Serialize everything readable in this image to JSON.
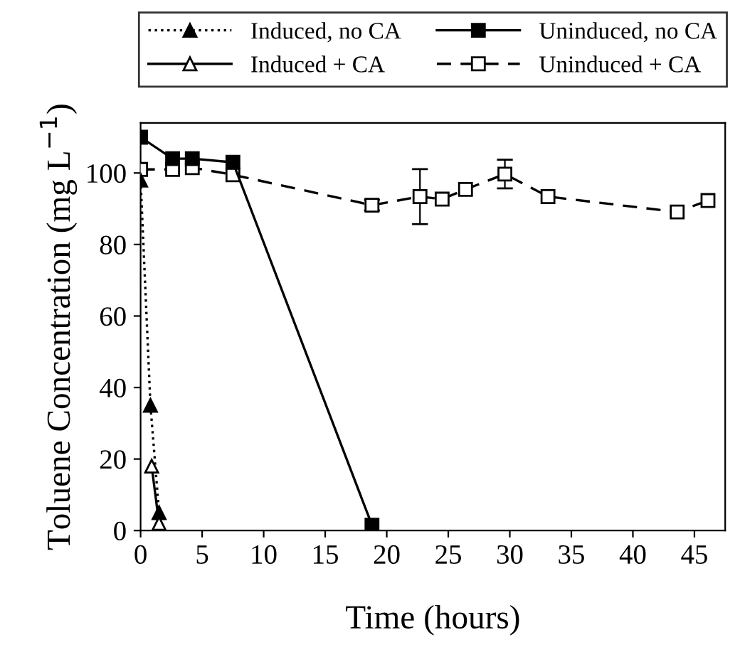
{
  "chart_data": {
    "type": "line",
    "xlabel": "Time (hours)",
    "ylabel": "Toluene Concentration (mg L$^{−1}$)",
    "xlim": [
      0,
      47.5
    ],
    "ylim": [
      0,
      114
    ],
    "xticks": [
      0,
      5,
      10,
      15,
      20,
      25,
      30,
      35,
      40,
      45
    ],
    "yticks": [
      0,
      20,
      40,
      60,
      80,
      100
    ],
    "grid": false,
    "legend": "top",
    "series": [
      {
        "name": "Induced, no CA",
        "color": "#000000",
        "marker": "triangle",
        "line_style": "dotted",
        "x": [
          0,
          0.8,
          1.5
        ],
        "values": [
          98,
          35,
          5
        ]
      },
      {
        "name": "Induced + CA",
        "color": "#000000",
        "marker": "triangle",
        "line_style": "solid",
        "x": [
          0.9,
          1.5
        ],
        "values": [
          18,
          2
        ]
      },
      {
        "name": "Uninduced, no CA",
        "color": "#000000",
        "marker": "square",
        "line_style": "solid",
        "x": [
          0,
          2.6,
          4.2,
          7.5,
          18.8
        ],
        "values": [
          110,
          104,
          104,
          103,
          1.5
        ]
      },
      {
        "name": "Uninduced + CA",
        "color": "#000000",
        "marker": "square",
        "line_style": "dashed",
        "x": [
          0,
          2.6,
          4.2,
          7.5,
          18.8,
          22.7,
          24.5,
          26.4,
          29.6,
          33.1,
          43.6,
          46.1
        ],
        "values": [
          101,
          101,
          101.5,
          99.5,
          91,
          93.4,
          92.7,
          95.4,
          99.7,
          93.4,
          89.1,
          92.3
        ],
        "errors": [
          null,
          null,
          null,
          null,
          1.5,
          7.7,
          null,
          null,
          4,
          null,
          null,
          null
        ]
      }
    ]
  }
}
